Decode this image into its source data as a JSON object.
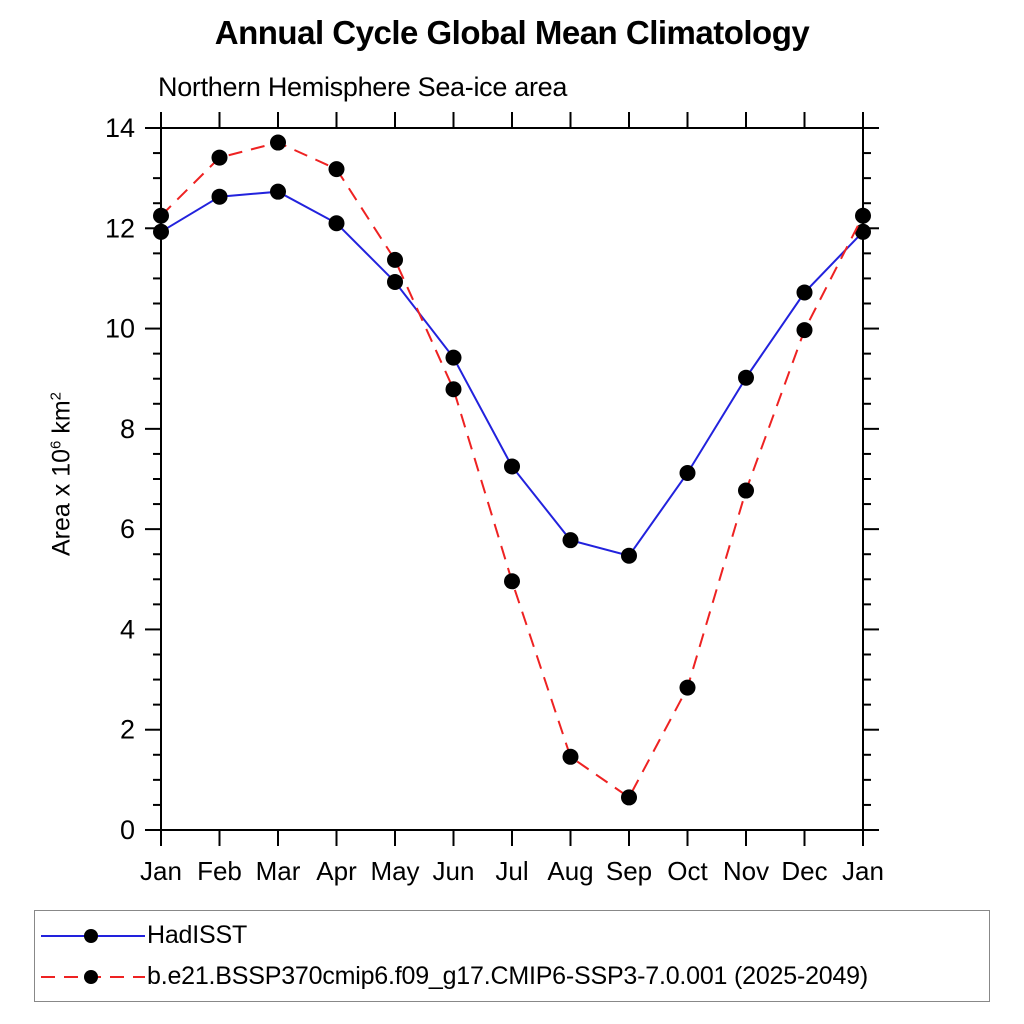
{
  "chart": {
    "title": "Annual Cycle Global Mean Climatology",
    "subtitle": "Northern Hemisphere Sea-ice area",
    "y_axis_title": {
      "prefix": "Area x 10",
      "exponent": "6",
      "unit": " km",
      "unit_exponent": "2"
    }
  },
  "chart_data": {
    "type": "line",
    "title": "Annual Cycle Global Mean Climatology",
    "subtitle": "Northern Hemisphere Sea-ice area",
    "xlabel": "",
    "ylabel": "Area x 10^6 km^2",
    "categories": [
      "Jan",
      "Feb",
      "Mar",
      "Apr",
      "May",
      "Jun",
      "Jul",
      "Aug",
      "Sep",
      "Oct",
      "Nov",
      "Dec",
      "Jan"
    ],
    "series": [
      {
        "name": "HadISST",
        "color": "#2222dd",
        "line_style": "solid",
        "line_width": 2,
        "marker": "filled-circle",
        "marker_color": "#000000",
        "values": [
          11.93,
          12.63,
          12.73,
          12.1,
          10.93,
          9.42,
          7.25,
          5.78,
          5.47,
          7.12,
          9.02,
          10.72,
          11.93
        ]
      },
      {
        "name": "b.e21.BSSP370cmip6.f09_g17.CMIP6-SSP3-7.0.001 (2025-2049)",
        "color": "#ee2222",
        "line_style": "dashed",
        "line_width": 2,
        "marker": "filled-circle",
        "marker_color": "#000000",
        "values": [
          12.25,
          13.41,
          13.71,
          13.18,
          11.37,
          8.79,
          4.96,
          1.46,
          0.65,
          2.84,
          6.77,
          9.97,
          12.25
        ]
      }
    ],
    "ylim": [
      0,
      14
    ],
    "ytick_major": [
      0,
      2,
      4,
      6,
      8,
      10,
      12,
      14
    ],
    "ytick_labels": [
      "0",
      "2",
      "4",
      "6",
      "8",
      "10",
      "12",
      "14"
    ],
    "ytick_minor_step": 0.5,
    "grid": false,
    "frame": "box-with-outward-ticks",
    "legend_position": "bottom-left-box"
  }
}
